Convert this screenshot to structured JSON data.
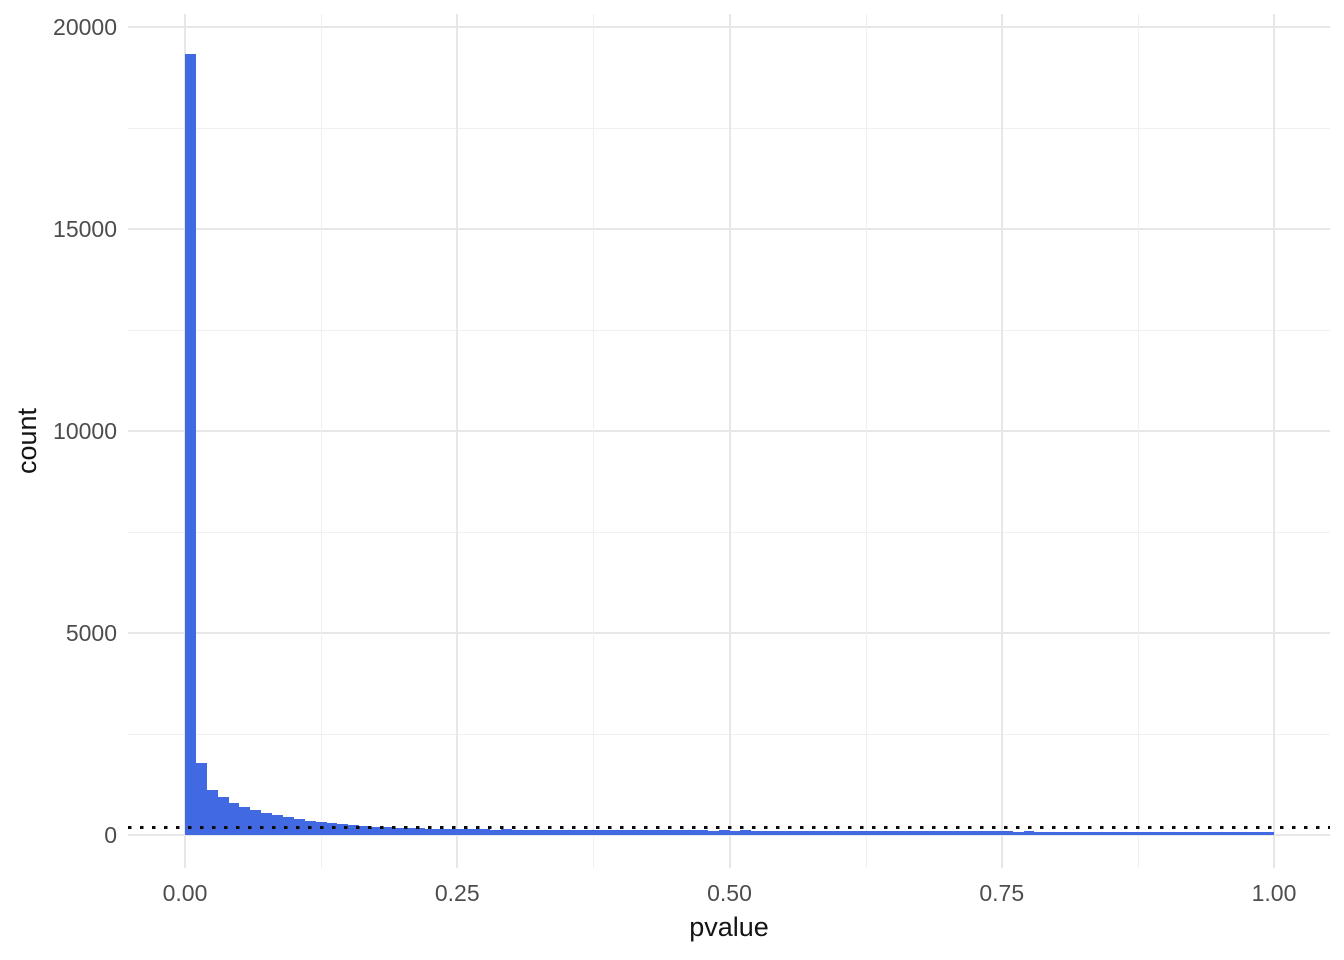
{
  "chart_data": {
    "type": "bar",
    "subtype": "histogram",
    "title": "",
    "xlabel": "pvalue",
    "ylabel": "count",
    "x_axis": {
      "range": [
        0,
        1
      ],
      "ticks": [
        {
          "value": 0.0,
          "label": "0.00"
        },
        {
          "value": 0.25,
          "label": "0.25"
        },
        {
          "value": 0.5,
          "label": "0.50"
        },
        {
          "value": 0.75,
          "label": "0.75"
        },
        {
          "value": 1.0,
          "label": "1.00"
        }
      ]
    },
    "y_axis": {
      "range": [
        0,
        20000
      ],
      "ticks": [
        {
          "value": 0,
          "label": "0"
        },
        {
          "value": 5000,
          "label": "5000"
        },
        {
          "value": 10000,
          "label": "10000"
        },
        {
          "value": 15000,
          "label": "15000"
        },
        {
          "value": 20000,
          "label": "20000"
        }
      ]
    },
    "grid": "major-and-minor",
    "legend_position": "none",
    "bins": {
      "start": 0.0,
      "width": 0.01
    },
    "counts": [
      19320,
      1780,
      1120,
      950,
      800,
      690,
      620,
      545,
      490,
      435,
      390,
      350,
      318,
      292,
      268,
      245,
      225,
      208,
      196,
      183,
      172,
      161,
      152,
      148,
      150,
      146,
      141,
      144,
      136,
      139,
      133,
      136,
      130,
      133,
      127,
      130,
      125,
      128,
      122,
      126,
      120,
      123,
      117,
      121,
      115,
      119,
      113,
      116,
      110,
      114,
      108,
      112,
      106,
      109,
      104,
      107,
      102,
      105,
      100,
      103,
      98,
      101,
      97,
      99,
      95,
      98,
      93,
      96,
      92,
      94,
      90,
      92,
      89,
      91,
      87,
      89,
      86,
      88,
      84,
      86,
      83,
      85,
      81,
      84,
      80,
      82,
      79,
      81,
      77,
      80,
      76,
      78,
      75,
      77,
      73,
      76,
      72,
      74,
      71,
      73
    ],
    "reference_line": {
      "orientation": "horizontal",
      "value": 185,
      "style": "dotted",
      "color": "#0c0c0c"
    },
    "style": {
      "bar_color": "#4169E1",
      "grid_major_color": "#E7E7E7",
      "grid_minor_color": "#F0F0F0",
      "tick_label_color": "#4D4D4D",
      "axis_title_color": "#141414",
      "background_color": "#FFFFFF"
    }
  }
}
